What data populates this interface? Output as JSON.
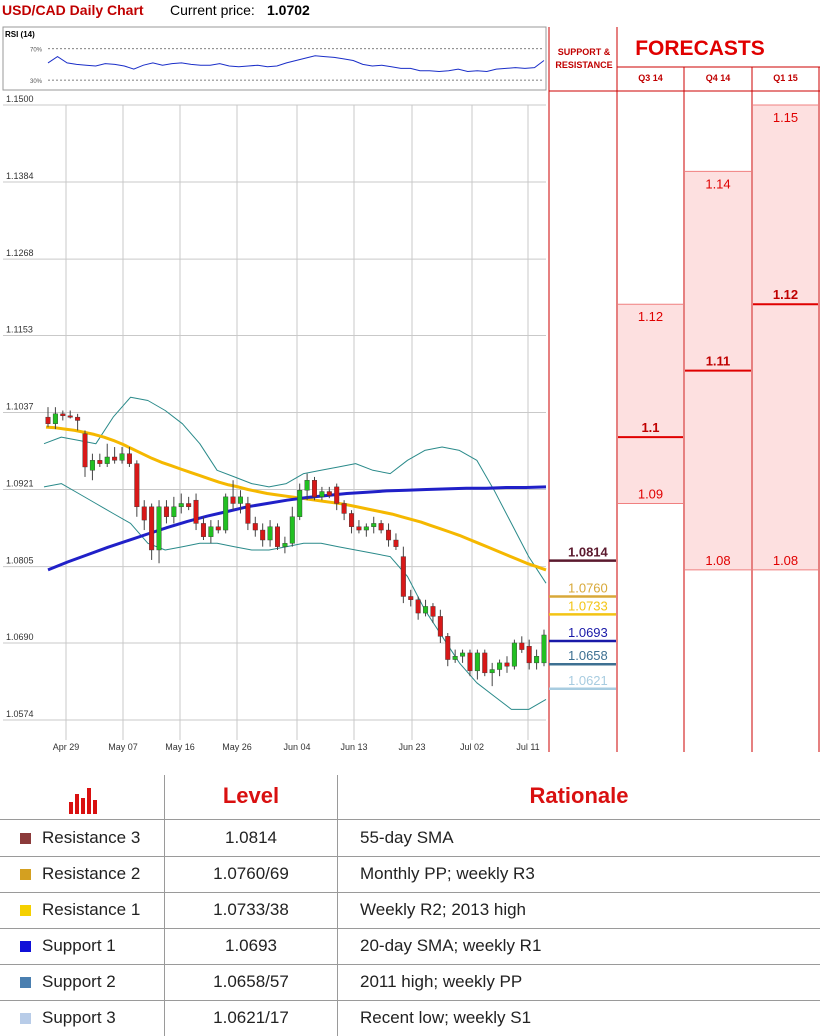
{
  "header": {
    "title": "USD/CAD Daily Chart",
    "price_label": "Current price:",
    "price_value": "1.0702"
  },
  "rsi": {
    "label": "RSI (14)",
    "levels": [
      "70%",
      "30%"
    ],
    "values": [
      52,
      60,
      52,
      50,
      49,
      48,
      51,
      50,
      48,
      44,
      49,
      52,
      49,
      51,
      52,
      50,
      49,
      49,
      51,
      48,
      47,
      48,
      49,
      47,
      48,
      52,
      55,
      58,
      61,
      60,
      59,
      57,
      55,
      50,
      48,
      49,
      47,
      45,
      45,
      42,
      42,
      41,
      42,
      44,
      41,
      42,
      41,
      44,
      45,
      46,
      45,
      46,
      55
    ]
  },
  "sr_header": "SUPPORT &\nRESISTANCE",
  "forecast": {
    "title": "FORECASTS",
    "columns": [
      {
        "label": "Q3 14",
        "top": 1.12,
        "bottom": 1.09,
        "mid": 1.1,
        "top_label": "1.12",
        "mid_label": "1.1",
        "bottom_label": "1.09"
      },
      {
        "label": "Q4 14",
        "top": 1.14,
        "bottom": 1.08,
        "mid": 1.11,
        "top_label": "1.14",
        "mid_label": "1.11",
        "bottom_label": "1.08"
      },
      {
        "label": "Q1 15",
        "top": 1.15,
        "bottom": 1.08,
        "mid": 1.12,
        "top_label": "1.15",
        "mid_label": "1.12",
        "bottom_label": "1.08"
      }
    ]
  },
  "chart_data": {
    "type": "candlestick",
    "title": "USD/CAD Daily Chart",
    "ylim": [
      1.0574,
      1.15
    ],
    "y_ticks": [
      1.15,
      1.1384,
      1.1268,
      1.1153,
      1.1037,
      1.0921,
      1.0805,
      1.069,
      1.0574
    ],
    "y_tick_labels": [
      "1.1500",
      "1.1384",
      "1.1268",
      "1.1153",
      "1.1037",
      "1.0921",
      "1.0805",
      "1.0690",
      "1.0574"
    ],
    "x_labels": [
      "Apr 29",
      "May 07",
      "May 16",
      "May 26",
      "Jun 04",
      "Jun 13",
      "Jun 23",
      "Jul 02",
      "Jul 11"
    ],
    "grid": true,
    "candles": [
      {
        "o": 1.103,
        "h": 1.1045,
        "l": 1.1015,
        "c": 1.102
      },
      {
        "o": 1.102,
        "h": 1.1045,
        "l": 1.1012,
        "c": 1.1035
      },
      {
        "o": 1.1035,
        "h": 1.104,
        "l": 1.1025,
        "c": 1.1032
      },
      {
        "o": 1.1032,
        "h": 1.104,
        "l": 1.1028,
        "c": 1.103
      },
      {
        "o": 1.103,
        "h": 1.1035,
        "l": 1.101,
        "c": 1.1025
      },
      {
        "o": 1.1005,
        "h": 1.101,
        "l": 1.094,
        "c": 1.0955
      },
      {
        "o": 1.095,
        "h": 1.0975,
        "l": 1.0935,
        "c": 1.0965
      },
      {
        "o": 1.0965,
        "h": 1.0975,
        "l": 1.0955,
        "c": 1.096
      },
      {
        "o": 1.096,
        "h": 1.099,
        "l": 1.0955,
        "c": 1.097
      },
      {
        "o": 1.097,
        "h": 1.0985,
        "l": 1.096,
        "c": 1.0965
      },
      {
        "o": 1.0965,
        "h": 1.0985,
        "l": 1.096,
        "c": 1.0975
      },
      {
        "o": 1.0975,
        "h": 1.0985,
        "l": 1.0955,
        "c": 1.096
      },
      {
        "o": 1.096,
        "h": 1.0965,
        "l": 1.088,
        "c": 1.0895
      },
      {
        "o": 1.0895,
        "h": 1.0905,
        "l": 1.086,
        "c": 1.0875
      },
      {
        "o": 1.0895,
        "h": 1.09,
        "l": 1.0815,
        "c": 1.083
      },
      {
        "o": 1.083,
        "h": 1.0905,
        "l": 1.081,
        "c": 1.0895
      },
      {
        "o": 1.0895,
        "h": 1.0905,
        "l": 1.087,
        "c": 1.088
      },
      {
        "o": 1.088,
        "h": 1.091,
        "l": 1.087,
        "c": 1.0895
      },
      {
        "o": 1.0895,
        "h": 1.0915,
        "l": 1.0885,
        "c": 1.09
      },
      {
        "o": 1.09,
        "h": 1.091,
        "l": 1.089,
        "c": 1.0895
      },
      {
        "o": 1.0905,
        "h": 1.0915,
        "l": 1.086,
        "c": 1.087
      },
      {
        "o": 1.087,
        "h": 1.088,
        "l": 1.0845,
        "c": 1.085
      },
      {
        "o": 1.085,
        "h": 1.0875,
        "l": 1.084,
        "c": 1.0865
      },
      {
        "o": 1.0865,
        "h": 1.0875,
        "l": 1.0855,
        "c": 1.086
      },
      {
        "o": 1.086,
        "h": 1.0915,
        "l": 1.0855,
        "c": 1.091
      },
      {
        "o": 1.091,
        "h": 1.0935,
        "l": 1.089,
        "c": 1.09
      },
      {
        "o": 1.09,
        "h": 1.092,
        "l": 1.0885,
        "c": 1.091
      },
      {
        "o": 1.09,
        "h": 1.091,
        "l": 1.086,
        "c": 1.087
      },
      {
        "o": 1.087,
        "h": 1.088,
        "l": 1.085,
        "c": 1.086
      },
      {
        "o": 1.086,
        "h": 1.087,
        "l": 1.0835,
        "c": 1.0845
      },
      {
        "o": 1.0845,
        "h": 1.0875,
        "l": 1.0835,
        "c": 1.0865
      },
      {
        "o": 1.0865,
        "h": 1.087,
        "l": 1.083,
        "c": 1.0835
      },
      {
        "o": 1.0835,
        "h": 1.085,
        "l": 1.0825,
        "c": 1.084
      },
      {
        "o": 1.084,
        "h": 1.0895,
        "l": 1.0835,
        "c": 1.088
      },
      {
        "o": 1.088,
        "h": 1.093,
        "l": 1.0875,
        "c": 1.092
      },
      {
        "o": 1.092,
        "h": 1.0945,
        "l": 1.0905,
        "c": 1.0935
      },
      {
        "o": 1.0935,
        "h": 1.094,
        "l": 1.0905,
        "c": 1.091
      },
      {
        "o": 1.091,
        "h": 1.0925,
        "l": 1.0905,
        "c": 1.0918
      },
      {
        "o": 1.0918,
        "h": 1.0925,
        "l": 1.0908,
        "c": 1.0912
      },
      {
        "o": 1.0925,
        "h": 1.093,
        "l": 1.089,
        "c": 1.09
      },
      {
        "o": 1.09,
        "h": 1.0905,
        "l": 1.0875,
        "c": 1.0885
      },
      {
        "o": 1.0885,
        "h": 1.089,
        "l": 1.0855,
        "c": 1.0865
      },
      {
        "o": 1.0865,
        "h": 1.0875,
        "l": 1.0855,
        "c": 1.086
      },
      {
        "o": 1.086,
        "h": 1.087,
        "l": 1.085,
        "c": 1.0865
      },
      {
        "o": 1.0865,
        "h": 1.088,
        "l": 1.0855,
        "c": 1.087
      },
      {
        "o": 1.087,
        "h": 1.0875,
        "l": 1.0855,
        "c": 1.086
      },
      {
        "o": 1.086,
        "h": 1.087,
        "l": 1.0835,
        "c": 1.0845
      },
      {
        "o": 1.0845,
        "h": 1.0855,
        "l": 1.083,
        "c": 1.0835
      },
      {
        "o": 1.082,
        "h": 1.0835,
        "l": 1.075,
        "c": 1.076
      },
      {
        "o": 1.076,
        "h": 1.077,
        "l": 1.0745,
        "c": 1.0755
      },
      {
        "o": 1.0755,
        "h": 1.076,
        "l": 1.0725,
        "c": 1.0735
      },
      {
        "o": 1.0735,
        "h": 1.0755,
        "l": 1.073,
        "c": 1.0745
      },
      {
        "o": 1.0745,
        "h": 1.075,
        "l": 1.072,
        "c": 1.073
      },
      {
        "o": 1.073,
        "h": 1.074,
        "l": 1.069,
        "c": 1.07
      },
      {
        "o": 1.07,
        "h": 1.0705,
        "l": 1.0655,
        "c": 1.0665
      },
      {
        "o": 1.0665,
        "h": 1.068,
        "l": 1.066,
        "c": 1.067
      },
      {
        "o": 1.067,
        "h": 1.068,
        "l": 1.066,
        "c": 1.0675
      },
      {
        "o": 1.0675,
        "h": 1.068,
        "l": 1.064,
        "c": 1.0648
      },
      {
        "o": 1.0648,
        "h": 1.068,
        "l": 1.0635,
        "c": 1.0675
      },
      {
        "o": 1.0675,
        "h": 1.068,
        "l": 1.064,
        "c": 1.0645
      },
      {
        "o": 1.0645,
        "h": 1.066,
        "l": 1.0625,
        "c": 1.065
      },
      {
        "o": 1.065,
        "h": 1.0665,
        "l": 1.064,
        "c": 1.066
      },
      {
        "o": 1.066,
        "h": 1.067,
        "l": 1.0645,
        "c": 1.0655
      },
      {
        "o": 1.0655,
        "h": 1.0695,
        "l": 1.065,
        "c": 1.069
      },
      {
        "o": 1.069,
        "h": 1.07,
        "l": 1.0675,
        "c": 1.068
      },
      {
        "o": 1.0685,
        "h": 1.0695,
        "l": 1.065,
        "c": 1.066
      },
      {
        "o": 1.066,
        "h": 1.068,
        "l": 1.065,
        "c": 1.067
      },
      {
        "o": 1.066,
        "h": 1.071,
        "l": 1.0655,
        "c": 1.0702
      }
    ],
    "sma_55": [
      1.1015,
      1.1014,
      1.1012,
      1.101,
      1.1007,
      1.1004,
      1.1,
      1.0995,
      1.0989,
      1.0982,
      1.0975,
      1.0968,
      1.0962,
      1.0957,
      1.0952,
      1.0947,
      1.0942,
      1.0937,
      1.0932,
      1.0928,
      1.0925,
      1.0921,
      1.0918,
      1.0915,
      1.0913,
      1.0911,
      1.0909,
      1.0907,
      1.0905,
      1.0903,
      1.0901,
      1.0899,
      1.0896,
      1.0893,
      1.089,
      1.0887,
      1.0884,
      1.088,
      1.0876,
      1.0872,
      1.0867,
      1.0862,
      1.0857,
      1.0852,
      1.0846,
      1.084,
      1.0834,
      1.0828,
      1.0822,
      1.0816,
      1.081,
      1.0805,
      1.08
    ],
    "sma_200": [
      1.08,
      1.0812,
      1.0823,
      1.0834,
      1.0844,
      1.0854,
      1.0864,
      1.0873,
      1.0881,
      1.0888,
      1.0895,
      1.09,
      1.0905,
      1.0909,
      1.0912,
      1.0915,
      1.0917,
      1.0919,
      1.092,
      1.0921,
      1.0922,
      1.0923,
      1.0923,
      1.0924,
      1.0924,
      1.0925
    ],
    "bb_upper": [
      1.099,
      1.1,
      1.0995,
      1.099,
      1.103,
      1.106,
      1.1055,
      1.104,
      1.102,
      1.099,
      1.095,
      1.094,
      1.093,
      1.0925,
      1.093,
      1.0945,
      1.095,
      1.0955,
      1.096,
      1.095,
      1.0945,
      1.0965,
      1.098,
      1.0985,
      1.098,
      1.0965,
      1.092,
      1.087,
      1.082,
      1.078
    ],
    "bb_lower": [
      1.0925,
      1.093,
      1.0915,
      1.09,
      1.0885,
      1.087,
      1.084,
      1.083,
      1.0835,
      1.084,
      1.084,
      1.0835,
      1.083,
      1.083,
      1.0835,
      1.084,
      1.084,
      1.0835,
      1.083,
      1.0825,
      1.082,
      1.079,
      1.074,
      1.07,
      1.066,
      1.063,
      1.061,
      1.059,
      1.059,
      1.0605
    ]
  },
  "sr_levels": [
    {
      "label": "1.0814",
      "value": 1.0814,
      "color": "#5b1a2e",
      "bold": true
    },
    {
      "label": "1.0760",
      "value": 1.076,
      "color": "#d8a838",
      "bold": false
    },
    {
      "label": "1.0733",
      "value": 1.0733,
      "color": "#f3c414",
      "bold": false
    },
    {
      "label": "1.0693",
      "value": 1.0693,
      "color": "#1a1aa8",
      "bold": false
    },
    {
      "label": "1.0658",
      "value": 1.0658,
      "color": "#3d7092",
      "bold": false
    },
    {
      "label": "1.0621",
      "value": 1.0621,
      "color": "#a8cce0",
      "bold": false
    }
  ],
  "table": {
    "headers": [
      "Level",
      "Rationale"
    ],
    "rows": [
      {
        "name": "Resistance 3",
        "level": "1.0814",
        "rationale": "55-day SMA",
        "color": "#8b3a3a"
      },
      {
        "name": "Resistance 2",
        "level": "1.0760/69",
        "rationale": "Monthly PP; weekly R3",
        "color": "#d4a020"
      },
      {
        "name": "Resistance 1",
        "level": "1.0733/38",
        "rationale": "Weekly R2; 2013 high",
        "color": "#f5d000"
      },
      {
        "name": "Support 1",
        "level": "1.0693",
        "rationale": "20-day SMA; weekly R1",
        "color": "#1010d8"
      },
      {
        "name": "Support 2",
        "level": "1.0658/57",
        "rationale": "2011 high; weekly PP",
        "color": "#4a7fb0"
      },
      {
        "name": "Support 3",
        "level": "1.0621/17",
        "rationale": "Recent low; weekly S1",
        "color": "#b8cce8"
      }
    ]
  },
  "colors": {
    "up": "#22c022",
    "down": "#d81818",
    "sma_55": "#f5b800",
    "sma_200": "#2020c8",
    "bollinger": "#2a8a8a",
    "forecast_fill": "#fde0e0",
    "forecast_line": "#e00000",
    "panel_border": "#cc0000"
  }
}
